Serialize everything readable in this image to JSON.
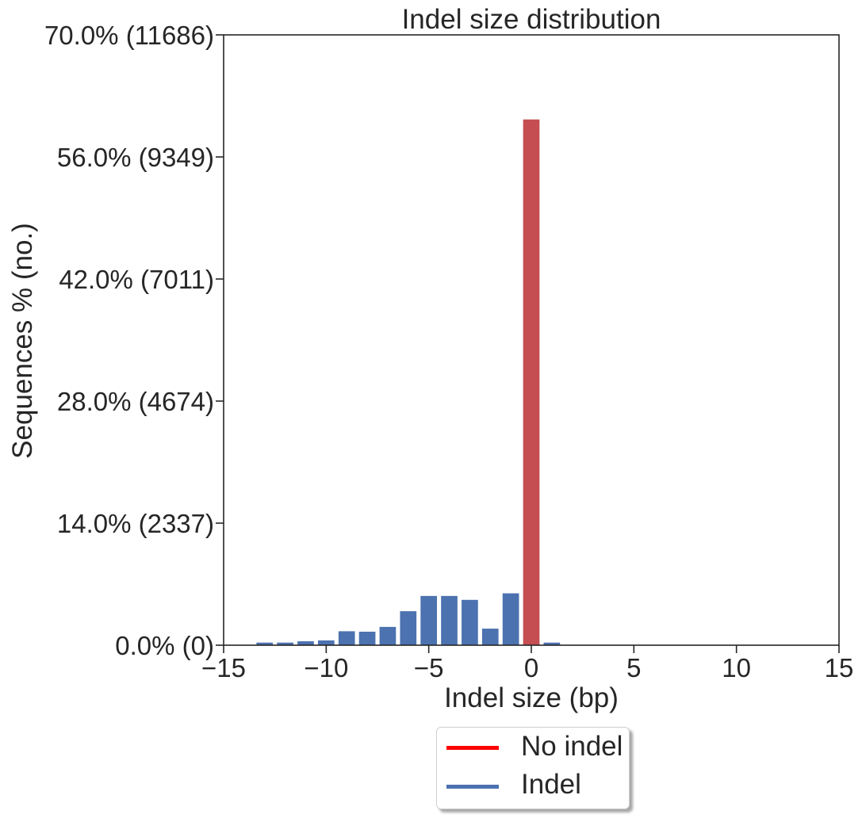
{
  "chart_data": {
    "type": "bar",
    "title": "Indel size distribution",
    "xlabel": "Indel size (bp)",
    "ylabel": "Sequences % (no.)",
    "xlim": [
      -15,
      15
    ],
    "ylim": [
      0,
      70
    ],
    "xticks": [
      -15,
      -10,
      -5,
      0,
      5,
      10,
      15
    ],
    "xtick_labels": [
      "−15",
      "−10",
      "−5",
      "0",
      "5",
      "10",
      "15"
    ],
    "yticks": [
      0,
      14,
      28,
      42,
      56,
      70
    ],
    "ytick_labels": [
      "0.0% (0)",
      "14.0% (2337)",
      "28.0% (4674)",
      "42.0% (7011)",
      "56.0% (9349)",
      "70.0% (11686)"
    ],
    "bar_width": 0.8,
    "series": [
      {
        "name": "Indel",
        "color": "#4c72b0",
        "x": [
          -13,
          -12,
          -11,
          -10,
          -9,
          -8,
          -7,
          -6,
          -5,
          -4,
          -3,
          -2,
          -1,
          1
        ],
        "values": [
          0.3,
          0.3,
          0.45,
          0.55,
          1.6,
          1.55,
          2.1,
          3.9,
          5.65,
          5.65,
          5.2,
          1.9,
          5.95,
          0.3
        ]
      },
      {
        "name": "No indel",
        "color": "#c44e52",
        "x": [
          0
        ],
        "values": [
          60.3
        ]
      }
    ],
    "grid": false,
    "legend_placement": "bottom-center"
  },
  "legend": {
    "items": [
      {
        "label": "No indel",
        "color": "#ff0000"
      },
      {
        "label": "Indel",
        "color": "#4c72b0"
      }
    ]
  }
}
